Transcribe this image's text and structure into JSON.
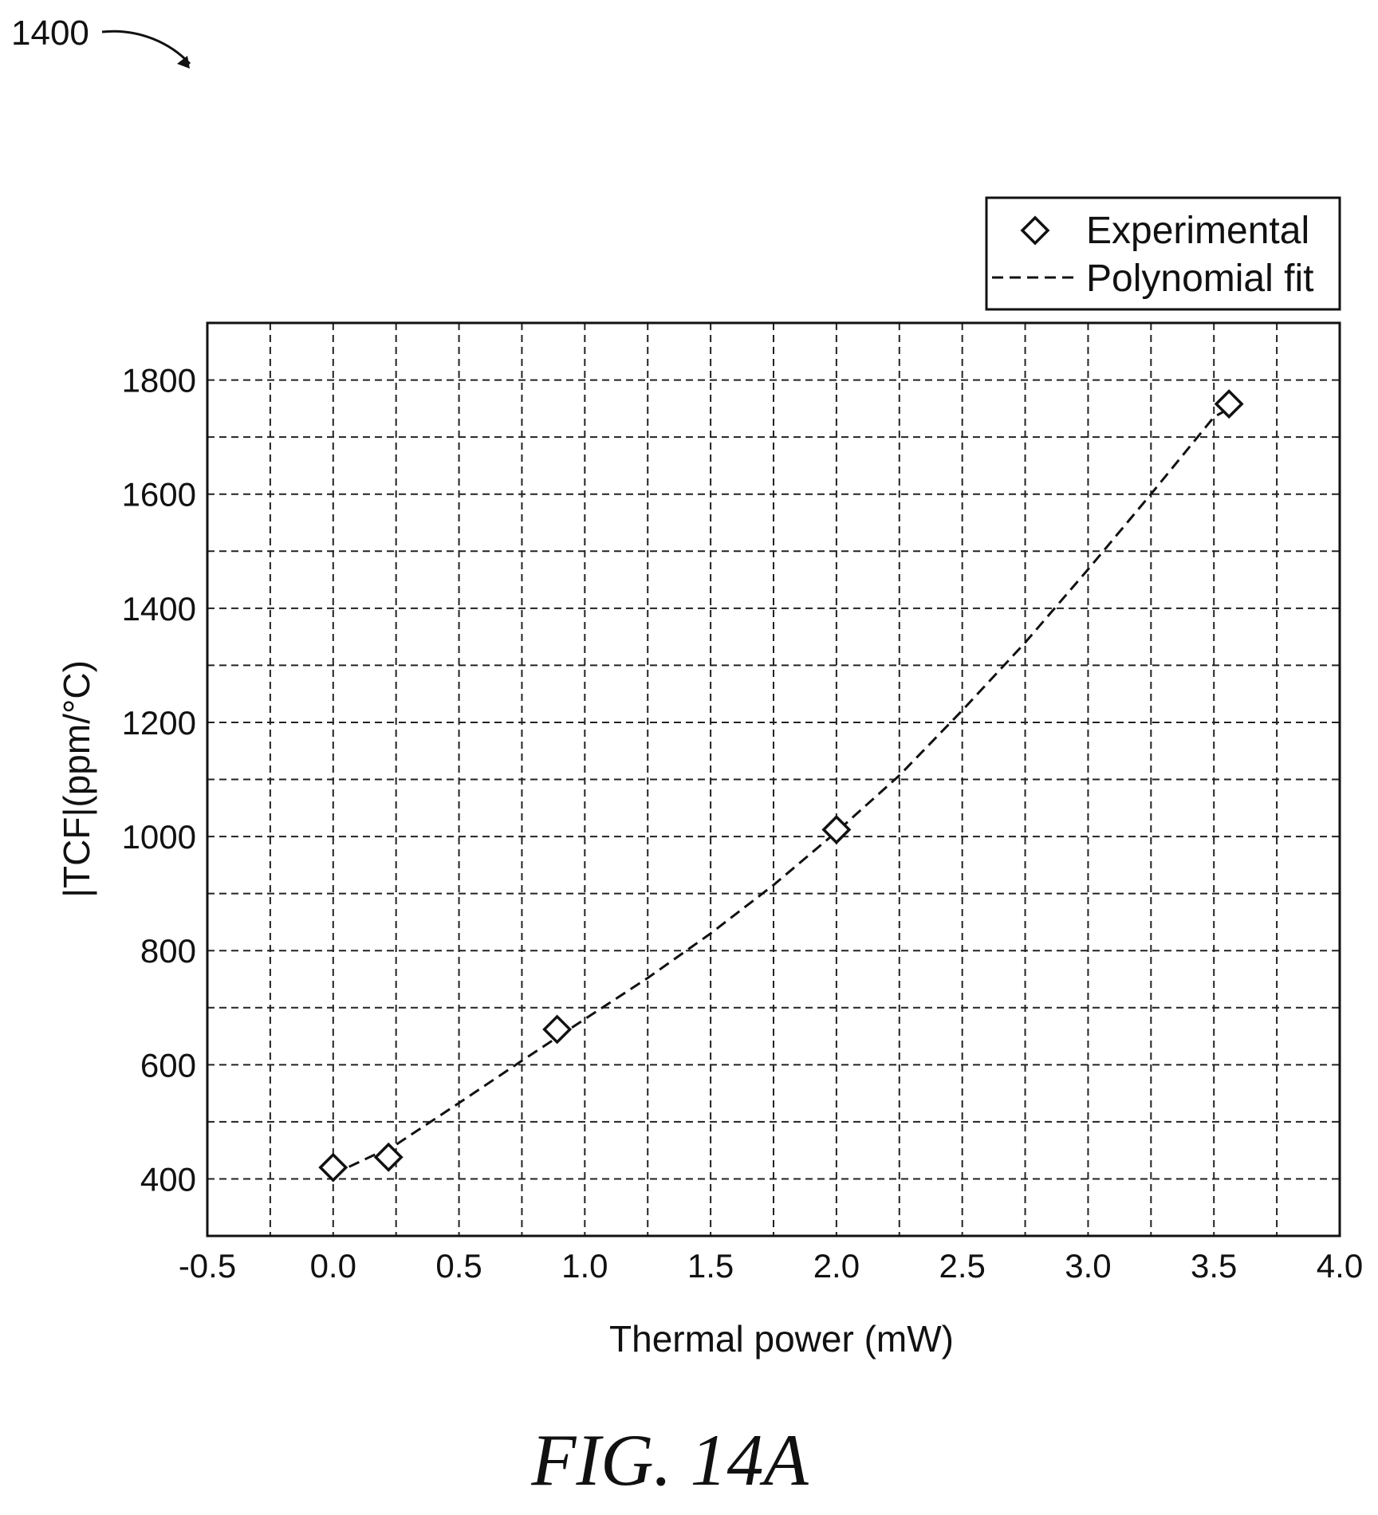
{
  "figure": {
    "reference_numeral": "1400",
    "caption": "FIG. 14A"
  },
  "chart_data": {
    "type": "scatter",
    "xlabel": "Thermal power (mW)",
    "ylabel": "|TCF|(ppm/°C)",
    "xlim": [
      -0.5,
      4.0
    ],
    "ylim": [
      300,
      1900
    ],
    "x_ticks": [
      "-0.5",
      "0.0",
      "0.5",
      "1.0",
      "1.5",
      "2.0",
      "2.5",
      "3.0",
      "3.5",
      "4.0"
    ],
    "y_ticks": [
      "400",
      "600",
      "800",
      "1000",
      "1200",
      "1400",
      "1600",
      "1800"
    ],
    "grid": true,
    "legend_position": "top-right, above plot",
    "series": [
      {
        "name": "Experimental",
        "marker": "open-diamond",
        "x": [
          0.0,
          0.22,
          0.89,
          2.0,
          3.56
        ],
        "y": [
          420,
          438,
          662,
          1012,
          1758
        ]
      },
      {
        "name": "Polynomial fit",
        "style": "dashed-line",
        "x": [
          0.0,
          0.25,
          0.5,
          0.75,
          1.0,
          1.25,
          1.5,
          1.75,
          2.0,
          2.25,
          2.5,
          2.75,
          3.0,
          3.25,
          3.5,
          3.56
        ],
        "y": [
          408,
          460,
          533,
          607,
          680,
          752,
          830,
          915,
          1008,
          1107,
          1221,
          1340,
          1468,
          1600,
          1735,
          1750
        ]
      }
    ]
  }
}
